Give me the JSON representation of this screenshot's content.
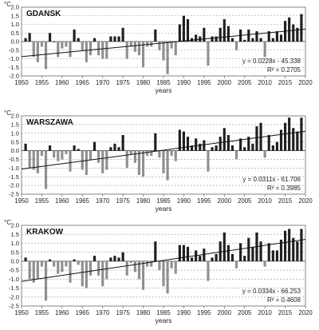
{
  "chart_data": [
    {
      "type": "bar",
      "title": "GDANSK",
      "unit_label": "°C",
      "xlabel": "years",
      "ylim": [
        -2.0,
        2.0
      ],
      "yticks": [
        -2.0,
        -1.5,
        -1.0,
        -0.5,
        0.0,
        0.5,
        1.0,
        1.5,
        2.0
      ],
      "xticks": [
        1950,
        1955,
        1960,
        1965,
        1970,
        1975,
        1980,
        1985,
        1990,
        1995,
        2000,
        2005,
        2010,
        2015,
        2020
      ],
      "x": [
        1951,
        1952,
        1953,
        1954,
        1955,
        1956,
        1957,
        1958,
        1959,
        1960,
        1961,
        1962,
        1963,
        1964,
        1965,
        1966,
        1967,
        1968,
        1969,
        1970,
        1971,
        1972,
        1973,
        1974,
        1975,
        1976,
        1977,
        1978,
        1979,
        1980,
        1981,
        1982,
        1983,
        1984,
        1985,
        1986,
        1987,
        1988,
        1989,
        1990,
        1991,
        1992,
        1993,
        1994,
        1995,
        1996,
        1997,
        1998,
        1999,
        2000,
        2001,
        2002,
        2003,
        2004,
        2005,
        2006,
        2007,
        2008,
        2009,
        2010,
        2011,
        2012,
        2013,
        2014,
        2015,
        2016,
        2017,
        2018,
        2019
      ],
      "values": [
        0.2,
        0.5,
        -0.9,
        -1.2,
        -0.3,
        -1.6,
        0.5,
        0.0,
        -0.9,
        -0.4,
        -0.3,
        -0.9,
        0.7,
        0.2,
        -0.5,
        -1.2,
        -0.8,
        0.2,
        -0.8,
        -1.0,
        -1.0,
        0.3,
        0.3,
        0.3,
        0.8,
        -1.0,
        -0.3,
        -0.6,
        -0.8,
        -1.5,
        -0.3,
        -0.3,
        0.7,
        -0.5,
        -1.1,
        -1.9,
        -0.4,
        -0.8,
        1.0,
        1.5,
        1.3,
        0.2,
        0.4,
        0.3,
        0.8,
        -1.4,
        0.3,
        0.3,
        0.8,
        1.3,
        0.9,
        0.2,
        -0.5,
        0.7,
        0.1,
        0.7,
        0.2,
        0.6,
        0.2,
        -0.9,
        0.6,
        0.2,
        0.6,
        0.4,
        1.2,
        1.4,
        1.0,
        0.8,
        1.6
      ],
      "trendline": {
        "slope": 0.0228,
        "intercept": -45.338
      },
      "equation": "y = 0.0228x - 45.338",
      "r2": "R² = 0.2705"
    },
    {
      "type": "bar",
      "title": "WARSZAWA",
      "unit_label": "°C",
      "xlabel": "years",
      "ylim": [
        -2.5,
        2.0
      ],
      "yticks": [
        -2.5,
        -2.0,
        -1.5,
        -1.0,
        -0.5,
        0.0,
        0.5,
        1.0,
        1.5,
        2.0
      ],
      "xticks": [
        1950,
        1955,
        1960,
        1965,
        1970,
        1975,
        1980,
        1985,
        1990,
        1995,
        2000,
        2005,
        2010,
        2015,
        2020
      ],
      "x": [
        1951,
        1952,
        1953,
        1954,
        1955,
        1956,
        1957,
        1958,
        1959,
        1960,
        1961,
        1962,
        1963,
        1964,
        1965,
        1966,
        1967,
        1968,
        1969,
        1970,
        1971,
        1972,
        1973,
        1974,
        1975,
        1976,
        1977,
        1978,
        1979,
        1980,
        1981,
        1982,
        1983,
        1984,
        1985,
        1986,
        1987,
        1988,
        1989,
        1990,
        1991,
        1992,
        1993,
        1994,
        1995,
        1996,
        1997,
        1998,
        1999,
        2000,
        2001,
        2002,
        2003,
        2004,
        2005,
        2006,
        2007,
        2008,
        2009,
        2010,
        2011,
        2012,
        2013,
        2014,
        2015,
        2016,
        2017,
        2018,
        2019
      ],
      "values": [
        0.4,
        -1.0,
        -1.1,
        -1.3,
        -0.3,
        -2.2,
        0.3,
        -0.4,
        -0.6,
        -0.5,
        -0.2,
        -1.2,
        0.3,
        0.1,
        -1.1,
        -1.4,
        -0.5,
        0.5,
        -0.7,
        -1.3,
        -1.1,
        0.2,
        0.4,
        0.2,
        0.9,
        -1.0,
        -0.2,
        -0.7,
        -1.4,
        -1.5,
        -0.3,
        -0.3,
        1.0,
        -0.4,
        -1.3,
        -1.7,
        -0.3,
        -0.6,
        1.2,
        1.1,
        0.8,
        0.3,
        0.7,
        0.4,
        0.6,
        -1.2,
        0.2,
        0.3,
        0.8,
        1.3,
        0.9,
        0.3,
        -0.5,
        0.7,
        0.2,
        0.8,
        0.4,
        1.4,
        1.6,
        -0.4,
        0.9,
        0.3,
        0.5,
        1.2,
        1.6,
        1.9,
        1.3,
        1.1,
        1.9
      ],
      "trendline": {
        "slope": 0.0311,
        "intercept": -61.706
      },
      "equation": "y = 0.0311x - 61.706",
      "r2": "R² = 0.3985"
    },
    {
      "type": "bar",
      "title": "KRAKOW",
      "unit_label": "°C",
      "xlabel": "years",
      "ylim": [
        -2.5,
        2.0
      ],
      "yticks": [
        -2.5,
        -2.0,
        -1.5,
        -1.0,
        -0.5,
        0.0,
        0.5,
        1.0,
        1.5,
        2.0
      ],
      "xticks": [
        1950,
        1955,
        1960,
        1965,
        1970,
        1975,
        1980,
        1985,
        1990,
        1995,
        2000,
        2005,
        2010,
        2015,
        2020
      ],
      "x": [
        1951,
        1952,
        1953,
        1954,
        1955,
        1956,
        1957,
        1958,
        1959,
        1960,
        1961,
        1962,
        1963,
        1964,
        1965,
        1966,
        1967,
        1968,
        1969,
        1970,
        1971,
        1972,
        1973,
        1974,
        1975,
        1976,
        1977,
        1978,
        1979,
        1980,
        1981,
        1982,
        1983,
        1984,
        1985,
        1986,
        1987,
        1988,
        1989,
        1990,
        1991,
        1992,
        1993,
        1994,
        1995,
        1996,
        1997,
        1998,
        1999,
        2000,
        2001,
        2002,
        2003,
        2004,
        2005,
        2006,
        2007,
        2008,
        2009,
        2010,
        2011,
        2012,
        2013,
        2014,
        2015,
        2016,
        2017,
        2018,
        2019
      ],
      "values": [
        0.2,
        -1.0,
        -1.2,
        -1.0,
        -0.3,
        -2.2,
        0.1,
        -0.3,
        -0.7,
        -0.6,
        -0.3,
        -1.2,
        0.1,
        -0.2,
        -1.4,
        -1.5,
        -0.8,
        0.3,
        -0.8,
        -1.4,
        -1.0,
        0.2,
        0.3,
        0.2,
        0.5,
        -0.8,
        -0.1,
        -0.6,
        -1.0,
        -1.6,
        -0.3,
        -0.3,
        1.1,
        -0.5,
        -1.4,
        -1.8,
        -0.4,
        -0.7,
        0.9,
        0.9,
        0.8,
        0.2,
        0.6,
        0.3,
        0.7,
        -1.1,
        0.2,
        0.4,
        1.1,
        1.6,
        0.9,
        0.4,
        -0.4,
        1.0,
        0.3,
        1.3,
        0.8,
        1.6,
        1.1,
        -0.3,
        1.0,
        0.6,
        0.6,
        1.2,
        1.7,
        1.8,
        1.3,
        1.1,
        1.8
      ],
      "trendline": {
        "slope": 0.0334,
        "intercept": -66.253
      },
      "equation": "y = 0.0334x - 66.253",
      "r2": "R² = 0.4608"
    }
  ],
  "colors": {
    "positive": "#1f1f1f",
    "negative": "#8f8f8f",
    "trend": "#111111",
    "grid": "#9a9a9a",
    "axis": "#666666",
    "text": "#222222"
  }
}
